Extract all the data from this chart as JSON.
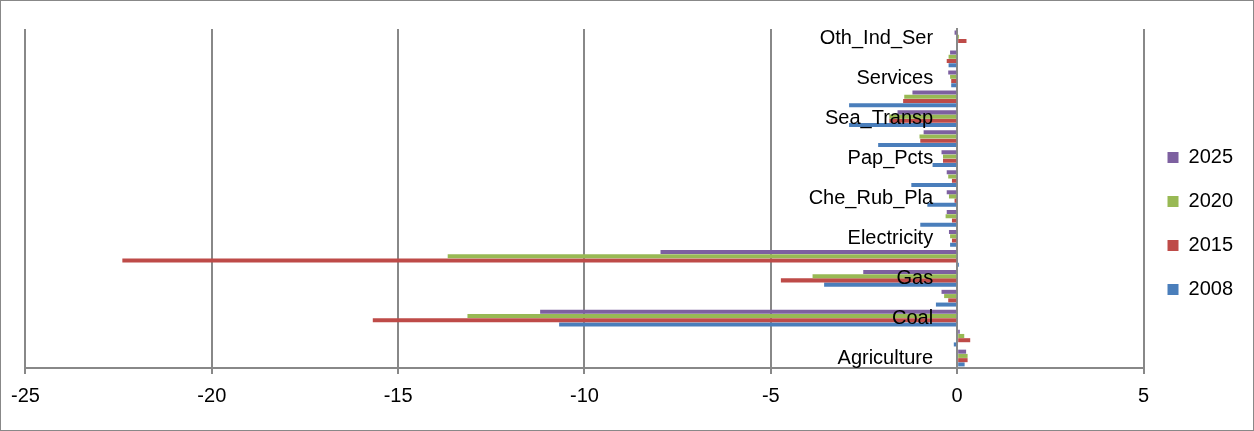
{
  "chart_data": {
    "type": "bar",
    "orientation": "horizontal",
    "categories": [
      "Oth_Ind_Ser",
      null,
      "Services",
      null,
      "Sea_Transp",
      null,
      "Pap_Pcts",
      null,
      "Che_Rub_Pla",
      null,
      "Electricity",
      null,
      "Gas",
      null,
      "Coal",
      null,
      "Agriculture"
    ],
    "series": [
      {
        "name": "2025",
        "color": "#7d60a0",
        "values": [
          -0.07,
          -0.19,
          -0.24,
          -1.2,
          -1.6,
          -0.9,
          -0.42,
          -0.28,
          -0.28,
          -0.28,
          -0.22,
          -7.96,
          -2.52,
          -0.42,
          -11.19,
          0.07,
          0.24
        ]
      },
      {
        "name": "2020",
        "color": "#98b954",
        "values": [
          0.05,
          -0.23,
          -0.19,
          -1.42,
          -1.82,
          -1.01,
          -0.38,
          -0.24,
          -0.22,
          -0.31,
          -0.19,
          -13.67,
          -3.88,
          -0.35,
          -13.14,
          0.19,
          0.28
        ]
      },
      {
        "name": "2015",
        "color": "#be4b48",
        "values": [
          0.25,
          -0.28,
          -0.16,
          -1.45,
          -1.82,
          -0.99,
          -0.38,
          -0.14,
          -0.07,
          -0.14,
          -0.14,
          -22.4,
          -4.73,
          -0.24,
          -15.68,
          0.35,
          0.28
        ]
      },
      {
        "name": "2008",
        "color": "#4a7ebb",
        "values": [
          null,
          -0.23,
          -0.16,
          -2.9,
          -2.9,
          -2.12,
          -0.66,
          -1.23,
          -0.8,
          -0.99,
          -0.19,
          0.05,
          -3.57,
          -0.57,
          -10.68,
          -0.09,
          0.2
        ]
      }
    ],
    "xlim": [
      -25,
      5
    ],
    "xticks": [
      -25,
      -20,
      -15,
      -10,
      -5,
      0,
      5
    ],
    "grid": "x",
    "legend": "right"
  }
}
